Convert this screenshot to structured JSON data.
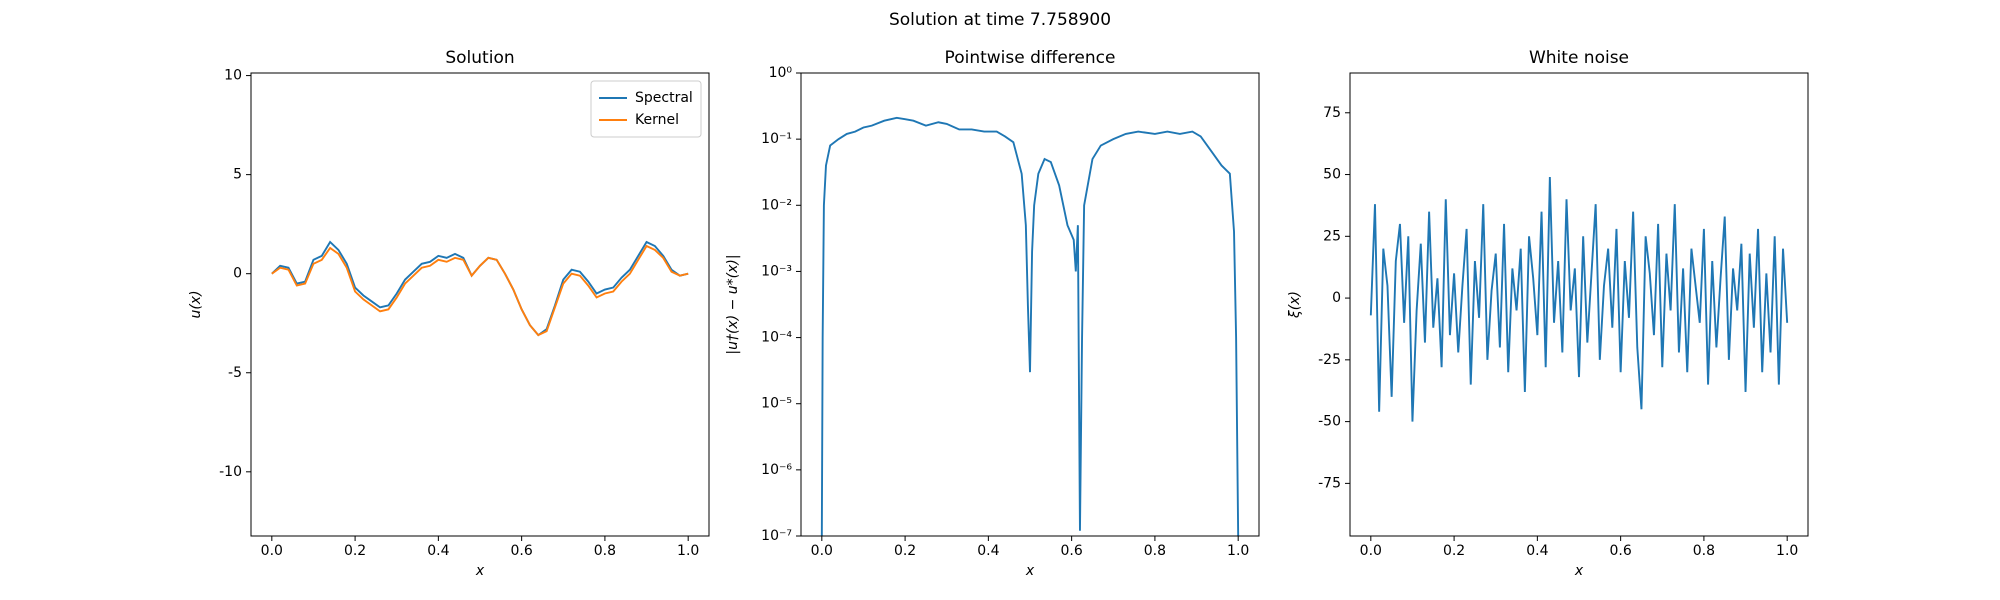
{
  "title": "Solution at time 7.758900",
  "chart_data": [
    {
      "type": "line",
      "title": "Solution",
      "xlabel": "x",
      "ylabel": "u(x)",
      "xlim": [
        -0.05,
        1.05
      ],
      "ylim": [
        -13.24,
        10.13
      ],
      "xticks": [
        {
          "value": 0,
          "label": "0.0"
        },
        0.2,
        0.4,
        0.6,
        0.8,
        {
          "value": 1,
          "label": "1.0"
        }
      ],
      "yticks": [
        -10,
        -5,
        0,
        5,
        10
      ],
      "legend": "upper right",
      "x": [
        0,
        0.02,
        0.04,
        0.06,
        0.08,
        0.1,
        0.12,
        0.14,
        0.16,
        0.18,
        0.2,
        0.22,
        0.24,
        0.26,
        0.28,
        0.3,
        0.32,
        0.34,
        0.36,
        0.38,
        0.4,
        0.42,
        0.44,
        0.46,
        0.48,
        0.5,
        0.52,
        0.54,
        0.56,
        0.58,
        0.6,
        0.62,
        0.64,
        0.66,
        0.68,
        0.7,
        0.72,
        0.74,
        0.76,
        0.78,
        0.8,
        0.82,
        0.84,
        0.86,
        0.88,
        0.9,
        0.92,
        0.94,
        0.96,
        0.98,
        1
      ],
      "series": [
        {
          "name": "Spectral",
          "color": "#1f77b4",
          "values": [
            0,
            0.4,
            0.3,
            -0.5,
            -0.4,
            0.7,
            0.9,
            1.6,
            1.2,
            0.5,
            -0.7,
            -1.1,
            -1.4,
            -1.7,
            -1.6,
            -1.0,
            -0.3,
            0.1,
            0.5,
            0.6,
            0.9,
            0.8,
            1.0,
            0.8,
            -0.1,
            0.4,
            0.8,
            0.7,
            0.0,
            -0.8,
            -1.8,
            -2.6,
            -3.1,
            -2.8,
            -1.6,
            -0.3,
            0.2,
            0.1,
            -0.4,
            -1.0,
            -0.8,
            -0.7,
            -0.2,
            0.2,
            0.9,
            1.6,
            1.4,
            0.9,
            0.2,
            -0.1,
            0.0
          ]
        },
        {
          "name": "Kernel",
          "color": "#ff7f0e",
          "values": [
            0,
            0.3,
            0.2,
            -0.6,
            -0.5,
            0.5,
            0.7,
            1.3,
            1.0,
            0.3,
            -0.9,
            -1.3,
            -1.6,
            -1.9,
            -1.8,
            -1.2,
            -0.5,
            -0.1,
            0.3,
            0.4,
            0.7,
            0.6,
            0.8,
            0.7,
            -0.1,
            0.4,
            0.8,
            0.7,
            0.0,
            -0.8,
            -1.8,
            -2.6,
            -3.1,
            -2.9,
            -1.7,
            -0.5,
            0.0,
            -0.1,
            -0.6,
            -1.2,
            -1.0,
            -0.9,
            -0.4,
            0.0,
            0.7,
            1.4,
            1.2,
            0.8,
            0.1,
            -0.1,
            0.0
          ]
        }
      ]
    },
    {
      "type": "line",
      "title": "Pointwise difference",
      "xlabel": "x",
      "ylabel": "|u†(x) − u*(x)|",
      "xlim": [
        -0.05,
        1.05
      ],
      "ylim": [
        1e-07,
        1
      ],
      "log_y": true,
      "color": "#1f77b4",
      "xticks": [
        {
          "value": 0,
          "label": "0.0"
        },
        0.2,
        0.4,
        0.6,
        0.8,
        {
          "value": 1,
          "label": "1.0"
        }
      ],
      "yticks": [
        {
          "value": 1e-07,
          "label": "10⁻⁷"
        },
        {
          "value": 1e-06,
          "label": "10⁻⁶"
        },
        {
          "value": 1e-05,
          "label": "10⁻⁵"
        },
        {
          "value": 0.0001,
          "label": "10⁻⁴"
        },
        {
          "value": 0.001,
          "label": "10⁻³"
        },
        {
          "value": 0.01,
          "label": "10⁻²"
        },
        {
          "value": 0.1,
          "label": "10⁻¹"
        },
        {
          "value": 1,
          "label": "10⁰"
        }
      ],
      "x": [
        0,
        0.002,
        0.005,
        0.01,
        0.02,
        0.04,
        0.06,
        0.08,
        0.1,
        0.12,
        0.15,
        0.18,
        0.2,
        0.22,
        0.25,
        0.28,
        0.3,
        0.33,
        0.36,
        0.39,
        0.42,
        0.44,
        0.46,
        0.48,
        0.49,
        0.495,
        0.5,
        0.505,
        0.51,
        0.52,
        0.535,
        0.55,
        0.57,
        0.59,
        0.605,
        0.61,
        0.615,
        0.62,
        0.625,
        0.63,
        0.65,
        0.67,
        0.7,
        0.73,
        0.76,
        0.8,
        0.83,
        0.86,
        0.89,
        0.91,
        0.94,
        0.96,
        0.98,
        0.99,
        0.995,
        1
      ],
      "values": [
        1e-07,
        0.0001,
        0.01,
        0.04,
        0.08,
        0.1,
        0.12,
        0.13,
        0.15,
        0.16,
        0.19,
        0.21,
        0.2,
        0.19,
        0.16,
        0.18,
        0.17,
        0.14,
        0.14,
        0.13,
        0.13,
        0.11,
        0.09,
        0.03,
        0.005,
        0.0003,
        3e-05,
        0.002,
        0.01,
        0.03,
        0.05,
        0.045,
        0.02,
        0.005,
        0.003,
        0.001,
        0.005,
        1.2e-07,
        0.0001,
        0.01,
        0.05,
        0.08,
        0.1,
        0.12,
        0.13,
        0.12,
        0.13,
        0.12,
        0.13,
        0.11,
        0.06,
        0.04,
        0.03,
        0.004,
        0.0001,
        1e-07
      ]
    },
    {
      "type": "line",
      "title": "White noise",
      "xlabel": "x",
      "ylabel": "ξ(x)",
      "xlim": [
        -0.05,
        1.05
      ],
      "ylim": [
        -96.3,
        91.1
      ],
      "color": "#1f77b4",
      "xticks": [
        {
          "value": 0,
          "label": "0.0"
        },
        0.2,
        0.4,
        0.6,
        0.8,
        {
          "value": 1,
          "label": "1.0"
        }
      ],
      "yticks": [
        -75,
        -50,
        -25,
        0,
        25,
        50,
        75
      ],
      "x": [
        0,
        0.01,
        0.02,
        0.03,
        0.04,
        0.05,
        0.06,
        0.07,
        0.08,
        0.09,
        0.1,
        0.11,
        0.12,
        0.13,
        0.14,
        0.15,
        0.16,
        0.17,
        0.18,
        0.19,
        0.2,
        0.21,
        0.22,
        0.23,
        0.24,
        0.25,
        0.26,
        0.27,
        0.28,
        0.29,
        0.3,
        0.31,
        0.32,
        0.33,
        0.34,
        0.35,
        0.36,
        0.37,
        0.38,
        0.39,
        0.4,
        0.41,
        0.42,
        0.43,
        0.44,
        0.45,
        0.46,
        0.47,
        0.48,
        0.49,
        0.5,
        0.51,
        0.52,
        0.53,
        0.54,
        0.55,
        0.56,
        0.57,
        0.58,
        0.59,
        0.6,
        0.61,
        0.62,
        0.63,
        0.64,
        0.65,
        0.66,
        0.67,
        0.68,
        0.69,
        0.7,
        0.71,
        0.72,
        0.73,
        0.74,
        0.75,
        0.76,
        0.77,
        0.78,
        0.79,
        0.8,
        0.81,
        0.82,
        0.83,
        0.84,
        0.85,
        0.86,
        0.87,
        0.88,
        0.89,
        0.9,
        0.91,
        0.92,
        0.93,
        0.94,
        0.95,
        0.96,
        0.97,
        0.98,
        0.99,
        1
      ],
      "values": [
        -7,
        38,
        -46,
        20,
        5,
        -40,
        15,
        30,
        -10,
        25,
        -50,
        -5,
        22,
        -18,
        35,
        -12,
        8,
        -28,
        40,
        -15,
        10,
        -22,
        5,
        28,
        -35,
        15,
        -8,
        38,
        -25,
        3,
        18,
        -20,
        30,
        -30,
        12,
        -5,
        20,
        -38,
        25,
        8,
        -15,
        35,
        -28,
        49,
        -10,
        15,
        -22,
        40,
        -5,
        12,
        -32,
        25,
        -18,
        10,
        38,
        -25,
        5,
        20,
        -12,
        28,
        -30,
        15,
        -8,
        35,
        -20,
        -45,
        25,
        10,
        -15,
        30,
        -28,
        18,
        -5,
        38,
        -22,
        12,
        -30,
        20,
        5,
        -10,
        28,
        -35,
        15,
        -20,
        8,
        33,
        -25,
        12,
        -5,
        22,
        -38,
        18,
        -12,
        28,
        -30,
        10,
        -22,
        25,
        -35,
        20,
        -10
      ]
    }
  ]
}
